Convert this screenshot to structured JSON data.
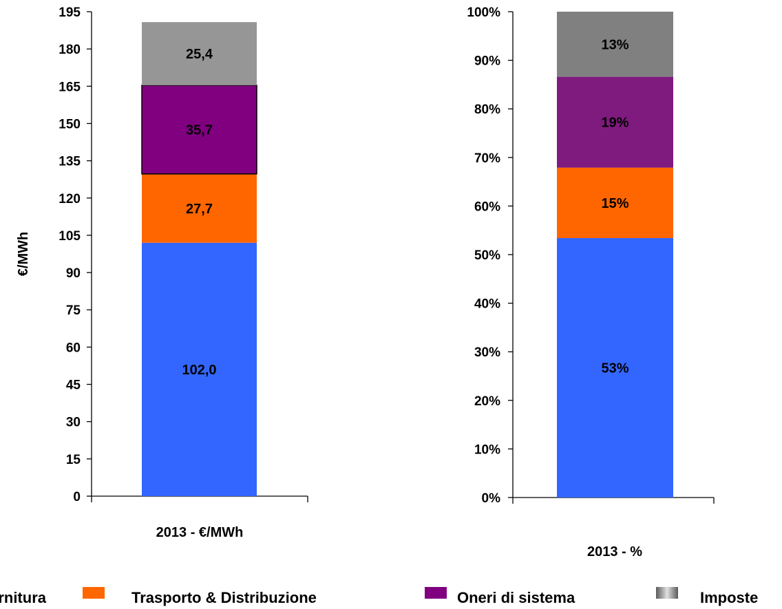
{
  "chart_data": [
    {
      "type": "bar",
      "stacked": true,
      "categories": [
        "2013 - €/MWh"
      ],
      "ylabel": "€/MWh",
      "ylim": [
        0,
        195
      ],
      "yticks": [
        "0",
        "15",
        "30",
        "45",
        "60",
        "75",
        "90",
        "105",
        "120",
        "135",
        "150",
        "165",
        "180",
        "195"
      ],
      "series": [
        {
          "name": "Fornitura",
          "values": [
            102.0
          ],
          "label": "102,0",
          "color": "#3366ff"
        },
        {
          "name": "Trasporto & Distribuzione",
          "values": [
            27.7
          ],
          "label": "27,7",
          "color": "#ff6600"
        },
        {
          "name": "Oneri di sistema",
          "values": [
            35.7
          ],
          "label": "35,7",
          "color": "#800080"
        },
        {
          "name": "Imposte",
          "values": [
            25.4
          ],
          "label": "25,4",
          "color": "#969696"
        }
      ]
    },
    {
      "type": "bar",
      "stacked": true,
      "categories": [
        "2013 - %"
      ],
      "ylabel": "",
      "ylim": [
        0,
        100
      ],
      "yticks": [
        "0%",
        "10%",
        "20%",
        "30%",
        "40%",
        "50%",
        "60%",
        "70%",
        "80%",
        "90%",
        "100%"
      ],
      "series": [
        {
          "name": "Fornitura",
          "values": [
            53.4
          ],
          "label": "53%",
          "color": "#3366ff"
        },
        {
          "name": "Trasporto & Distribuzione",
          "values": [
            14.5
          ],
          "label": "15%",
          "color": "#ff6600"
        },
        {
          "name": "Oneri di sistema",
          "values": [
            18.7
          ],
          "label": "19%",
          "color": "#7f1a7f"
        },
        {
          "name": "Imposte",
          "values": [
            13.4
          ],
          "label": "13%",
          "color": "#808080"
        }
      ]
    }
  ],
  "legend": {
    "placement": "bottom",
    "items": [
      {
        "label": "Fornitura",
        "color": "#3366ff"
      },
      {
        "label": "Trasporto & Distribuzione",
        "color": "#ff6600"
      },
      {
        "label": "Oneri di sistema",
        "color": "#800080"
      },
      {
        "label": "Imposte",
        "color": "#969696"
      }
    ]
  }
}
